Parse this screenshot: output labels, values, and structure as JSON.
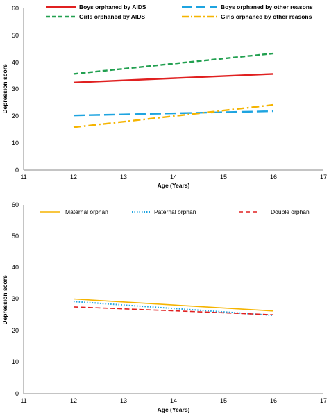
{
  "chart_data": [
    {
      "type": "line",
      "xlabel": "Age (Years)",
      "ylabel": "Depression score",
      "xlim": [
        11,
        17
      ],
      "ylim": [
        0,
        60
      ],
      "x_ticks": [
        "11",
        "12",
        "13",
        "14",
        "15",
        "16",
        "17"
      ],
      "y_ticks": [
        "0",
        "10",
        "20",
        "30",
        "40",
        "50",
        "60"
      ],
      "grid": false,
      "legend_position": "top",
      "series": [
        {
          "name": "Boys orphaned by AIDS",
          "x": [
            12,
            16
          ],
          "values": [
            32.5,
            35.7
          ],
          "color": "#e02020",
          "style": "solid"
        },
        {
          "name": "Boys orphaned by other reasons",
          "x": [
            12,
            16
          ],
          "values": [
            20.3,
            21.9
          ],
          "color": "#1ea4e0",
          "style": "long-dash"
        },
        {
          "name": "Girls orphaned by AIDS",
          "x": [
            12,
            16
          ],
          "values": [
            35.7,
            43.3
          ],
          "color": "#22a050",
          "style": "dash"
        },
        {
          "name": "Girls orphaned by other reasons",
          "x": [
            12,
            16
          ],
          "values": [
            15.9,
            24.2
          ],
          "color": "#f5b400",
          "style": "dash-dot"
        }
      ]
    },
    {
      "type": "line",
      "xlabel": "Age (Years)",
      "ylabel": "Depression score",
      "xlim": [
        11,
        17
      ],
      "ylim": [
        0,
        60
      ],
      "x_ticks": [
        "11",
        "12",
        "13",
        "14",
        "15",
        "16",
        "17"
      ],
      "y_ticks": [
        "0",
        "10",
        "20",
        "30",
        "40",
        "50",
        "60"
      ],
      "grid": false,
      "legend_position": "top",
      "series": [
        {
          "name": "Maternal orphan",
          "x": [
            12,
            16
          ],
          "values": [
            30.1,
            26.3
          ],
          "color": "#f5b400",
          "style": "solid"
        },
        {
          "name": "Paternal orphan",
          "x": [
            12,
            16
          ],
          "values": [
            29.3,
            24.9
          ],
          "color": "#1ea4e0",
          "style": "dotted"
        },
        {
          "name": "Double orphan",
          "x": [
            12,
            16
          ],
          "values": [
            27.6,
            25.1
          ],
          "color": "#e02020",
          "style": "dash"
        }
      ]
    }
  ]
}
